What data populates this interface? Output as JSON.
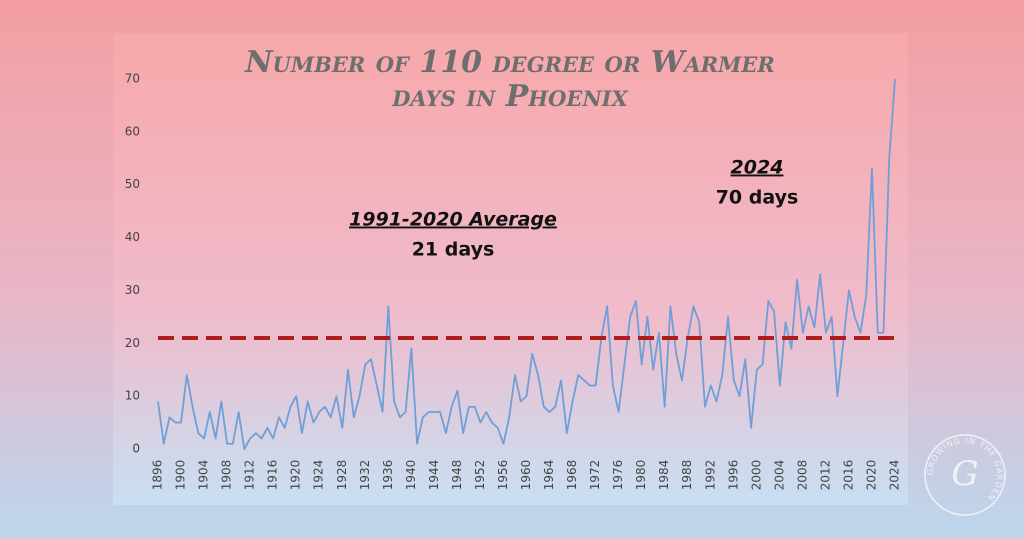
{
  "chart_data": {
    "type": "line",
    "title": [
      "Number of 110 degree or Warmer",
      "days in Phoenix"
    ],
    "x": [
      1896,
      1897,
      1898,
      1899,
      1900,
      1901,
      1902,
      1903,
      1904,
      1905,
      1906,
      1907,
      1908,
      1909,
      1910,
      1911,
      1912,
      1913,
      1914,
      1915,
      1916,
      1917,
      1918,
      1919,
      1920,
      1921,
      1922,
      1923,
      1924,
      1925,
      1926,
      1927,
      1928,
      1929,
      1930,
      1931,
      1932,
      1933,
      1934,
      1935,
      1936,
      1937,
      1938,
      1939,
      1940,
      1941,
      1942,
      1943,
      1944,
      1945,
      1946,
      1947,
      1948,
      1949,
      1950,
      1951,
      1952,
      1953,
      1954,
      1955,
      1956,
      1957,
      1958,
      1959,
      1960,
      1961,
      1962,
      1963,
      1964,
      1965,
      1966,
      1967,
      1968,
      1969,
      1970,
      1971,
      1972,
      1973,
      1974,
      1975,
      1976,
      1977,
      1978,
      1979,
      1980,
      1981,
      1982,
      1983,
      1984,
      1985,
      1986,
      1987,
      1988,
      1989,
      1990,
      1991,
      1992,
      1993,
      1994,
      1995,
      1996,
      1997,
      1998,
      1999,
      2000,
      2001,
      2002,
      2003,
      2004,
      2005,
      2006,
      2007,
      2008,
      2009,
      2010,
      2011,
      2012,
      2013,
      2014,
      2015,
      2016,
      2017,
      2018,
      2019,
      2020,
      2021,
      2022,
      2023,
      2024
    ],
    "values": [
      9,
      1,
      6,
      5,
      5,
      14,
      8,
      3,
      2,
      7,
      2,
      9,
      1,
      1,
      7,
      0,
      2,
      3,
      2,
      4,
      2,
      6,
      4,
      8,
      10,
      3,
      9,
      5,
      7,
      8,
      6,
      10,
      4,
      15,
      6,
      10,
      16,
      17,
      12,
      7,
      27,
      9,
      6,
      7,
      19,
      1,
      6,
      7,
      7,
      7,
      3,
      8,
      11,
      3,
      8,
      8,
      5,
      7,
      5,
      4,
      1,
      6,
      14,
      9,
      10,
      18,
      14,
      8,
      7,
      8,
      13,
      3,
      9,
      14,
      13,
      12,
      12,
      21,
      27,
      12,
      7,
      16,
      25,
      28,
      16,
      25,
      15,
      22,
      8,
      27,
      18,
      13,
      21,
      27,
      24,
      8,
      12,
      9,
      14,
      25,
      13,
      10,
      17,
      4,
      15,
      16,
      28,
      26,
      12,
      24,
      19,
      32,
      22,
      27,
      23,
      33,
      22,
      25,
      10,
      20,
      30,
      25,
      22,
      29,
      53,
      22,
      22,
      55,
      70
    ],
    "color": "#6f9fd6",
    "xlim": [
      1896,
      2024
    ],
    "xticks": [
      1896,
      1900,
      1904,
      1908,
      1912,
      1916,
      1920,
      1924,
      1928,
      1932,
      1936,
      1940,
      1944,
      1948,
      1952,
      1956,
      1960,
      1964,
      1968,
      1972,
      1976,
      1980,
      1984,
      1988,
      1992,
      1996,
      2000,
      2004,
      2008,
      2012,
      2016,
      2020,
      2024
    ],
    "ylim": [
      0,
      70
    ],
    "yticks": [
      0,
      10,
      20,
      30,
      40,
      50,
      60,
      70
    ],
    "reference_line": {
      "value": 21,
      "color": "#b01c1c"
    },
    "annotations": [
      {
        "title": "1991-2020 Average",
        "text": "21 days"
      },
      {
        "title": "2024",
        "text": "70 days"
      }
    ]
  },
  "logo": {
    "ring": "GROWING IN THE GARDEN",
    "letter": "G"
  }
}
